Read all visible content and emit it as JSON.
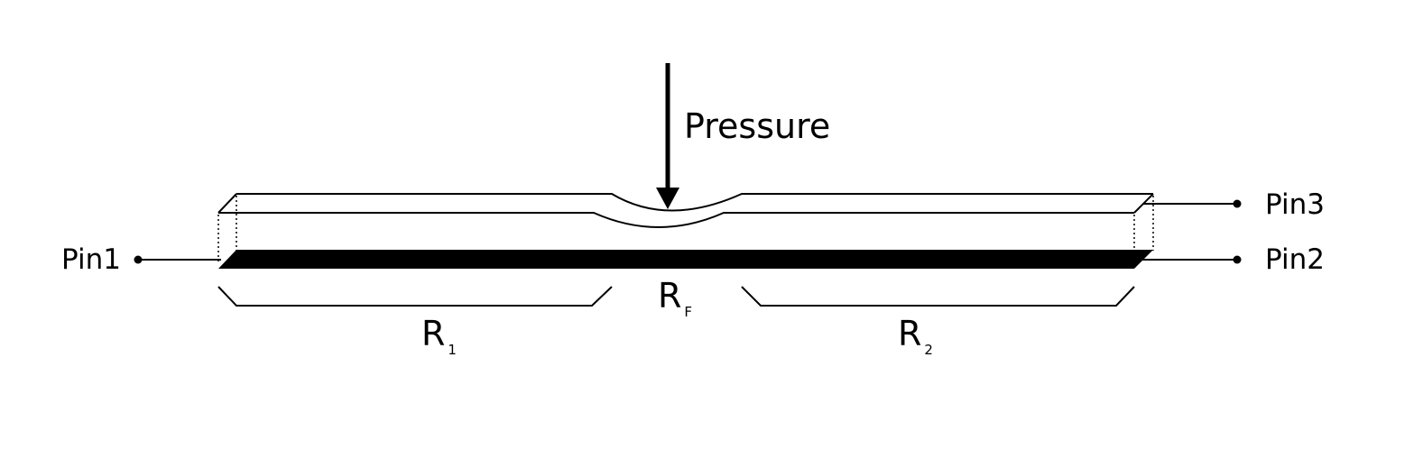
{
  "labels": {
    "pressure": "Pressure",
    "pin1": "Pin1",
    "pin2": "Pin2",
    "pin3": "Pin3",
    "r1_main": "R",
    "r1_sub": "1",
    "rf_main": "R",
    "rf_sub": "F",
    "r2_main": "R",
    "r2_sub": "2"
  },
  "colors": {
    "stroke": "#000000",
    "conductive_strip": "#000000",
    "background": "#ffffff"
  }
}
